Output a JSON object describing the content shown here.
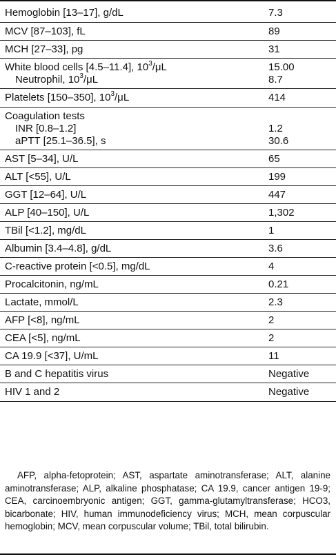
{
  "rows": [
    {
      "label": "Hemoglobin [13–17], g/dL",
      "value": "7.3"
    },
    {
      "label": "MCV [87–103], fL",
      "value": "89"
    },
    {
      "label": "MCH [27–33], pg",
      "value": "31"
    },
    {
      "label_pre": "White blood cells [4.5–11.4], 10",
      "label_sup": "3",
      "label_post": "/μL",
      "value": "15.00",
      "sub_pre": "Neutrophil, 10",
      "sub_sup": "3",
      "sub_post": "/μL",
      "sub_value": "8.7"
    },
    {
      "label_pre": "Platelets [150–350], 10",
      "label_sup": "3",
      "label_post": "/μL",
      "value": "414"
    },
    {
      "label": "Coagulation tests",
      "sub1_label": "INR [0.8–1.2]",
      "sub1_value": "1.2",
      "sub2_label": "aPTT [25.1–36.5], s",
      "sub2_value": "30.6"
    },
    {
      "label": "AST [5–34], U/L",
      "value": "65"
    },
    {
      "label": "ALT [<55], U/L",
      "value": "199"
    },
    {
      "label": "GGT [12–64], U/L",
      "value": "447"
    },
    {
      "label": "ALP [40–150], U/L",
      "value": "1,302"
    },
    {
      "label": "TBil [<1.2], mg/dL",
      "value": "1"
    },
    {
      "label": "Albumin [3.4–4.8], g/dL",
      "value": "3.6"
    },
    {
      "label": "C-reactive protein [<0.5], mg/dL",
      "value": "4"
    },
    {
      "label": "Procalcitonin, ng/mL",
      "value": "0.21"
    },
    {
      "label": "Lactate, mmol/L",
      "value": "2.3"
    },
    {
      "label": "AFP [<8], ng/mL",
      "value": "2"
    },
    {
      "label": "CEA [<5], ng/mL",
      "value": "2"
    },
    {
      "label": "CA 19.9 [<37], U/mL",
      "value": "11"
    },
    {
      "label": "B and C hepatitis virus",
      "value": "Negative"
    },
    {
      "label": "HIV 1 and 2",
      "value": "Negative"
    }
  ],
  "footnote": "AFP, alpha-fetoprotein; AST, aspartate aminotransferase; ALT, alanine aminotransferase; ALP, alkaline phosphatase; CA 19.9, cancer antigen 19-9; CEA, carcinoembryonic antigen; GGT, gamma-glutamyltransferase; HCO3, bicarbonate; HIV, human immunodeficiency virus; MCH, mean corpuscular hemoglobin; MCV, mean corpuscular volume; TBil, total bilirubin."
}
